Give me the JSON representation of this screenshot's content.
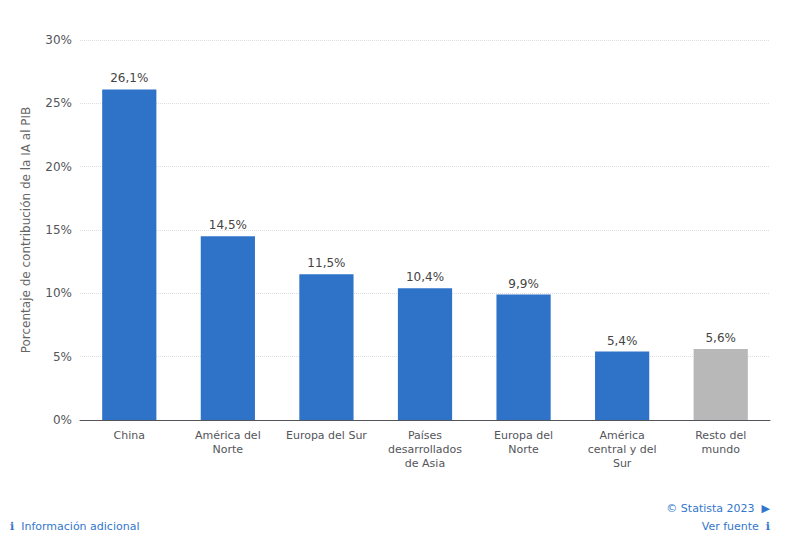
{
  "chart_data": {
    "type": "bar",
    "categories": [
      "China",
      "América del\nNorte",
      "Europa del Sur",
      "Países\ndesarrollados\nde Asia",
      "Europa del\nNorte",
      "América\ncentral y del\nSur",
      "Resto del\nmundo"
    ],
    "values": [
      26.1,
      14.5,
      11.5,
      10.4,
      9.9,
      5.4,
      5.6
    ],
    "value_labels": [
      "26,1%",
      "14,5%",
      "11,5%",
      "10,4%",
      "9,9%",
      "5,4%",
      "5,6%"
    ],
    "data_labels": true,
    "colors": [
      "#2F73C8",
      "#2F73C8",
      "#2F73C8",
      "#2F73C8",
      "#2F73C8",
      "#2F73C8",
      "#B8B8B8"
    ],
    "ylabel": "Porcentaje de contribución de la IA al PIB",
    "ylim": [
      0,
      30
    ],
    "yticks": [
      {
        "value": 0,
        "label": "0%"
      },
      {
        "value": 5,
        "label": "5%"
      },
      {
        "value": 10,
        "label": "10%"
      },
      {
        "value": 15,
        "label": "15%"
      },
      {
        "value": 20,
        "label": "20%"
      },
      {
        "value": 25,
        "label": "25%"
      },
      {
        "value": 30,
        "label": "30%"
      }
    ],
    "grid": true,
    "annotations": [
      "© Statista 2023  ▶",
      "Ver fuente  ℹ",
      "ℹ  Información adicional"
    ]
  }
}
